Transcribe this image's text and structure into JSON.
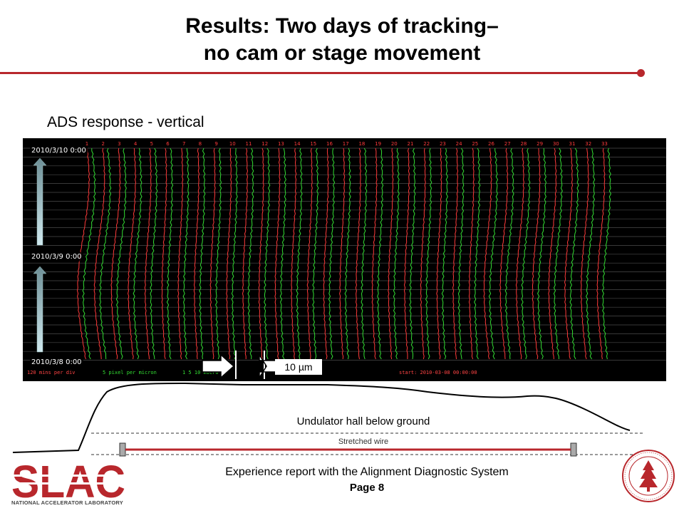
{
  "slide": {
    "title_line1": "Results: Two days of tracking–",
    "title_line2": "no cam or stage movement",
    "subtitle": "ADS response - vertical",
    "accent_color": "#b8272c"
  },
  "plot": {
    "dates": [
      "2010/3/10 0:00",
      "2010/3/9 0:00",
      "2010/3/8 0:00"
    ],
    "channel_numbers": [
      "1",
      "2",
      "3",
      "4",
      "5",
      "6",
      "7",
      "8",
      "9",
      "10",
      "11",
      "12",
      "13",
      "14",
      "15",
      "16",
      "17",
      "18",
      "19",
      "20",
      "21",
      "22",
      "23",
      "24",
      "25",
      "26",
      "27",
      "28",
      "29",
      "30",
      "31",
      "32",
      "33"
    ],
    "footer_scale": "120 mins per div",
    "footer_pixels": "5 pixel per micron",
    "footer_micro": "1 5 10 micro",
    "footer_start": "start: 2010-03-08 00:00:00",
    "scale_bar_label": "10 µm",
    "trace_colors": {
      "red": "#ff3a3a",
      "green": "#33dd33",
      "number": "#ff3a3a",
      "grid": "#4a4a4a"
    }
  },
  "diagram": {
    "hall_label": "Undulator hall below ground",
    "wire_label": "Stretched wire"
  },
  "footer": {
    "text": "Experience report with the Alignment Diagnostic System",
    "page": "Page 8"
  },
  "logo": {
    "text": "SLAC",
    "subtitle": "NATIONAL ACCELERATOR LABORATORY",
    "color": "#b8272c"
  },
  "seal": {
    "icon": "stanford-seal-icon"
  }
}
